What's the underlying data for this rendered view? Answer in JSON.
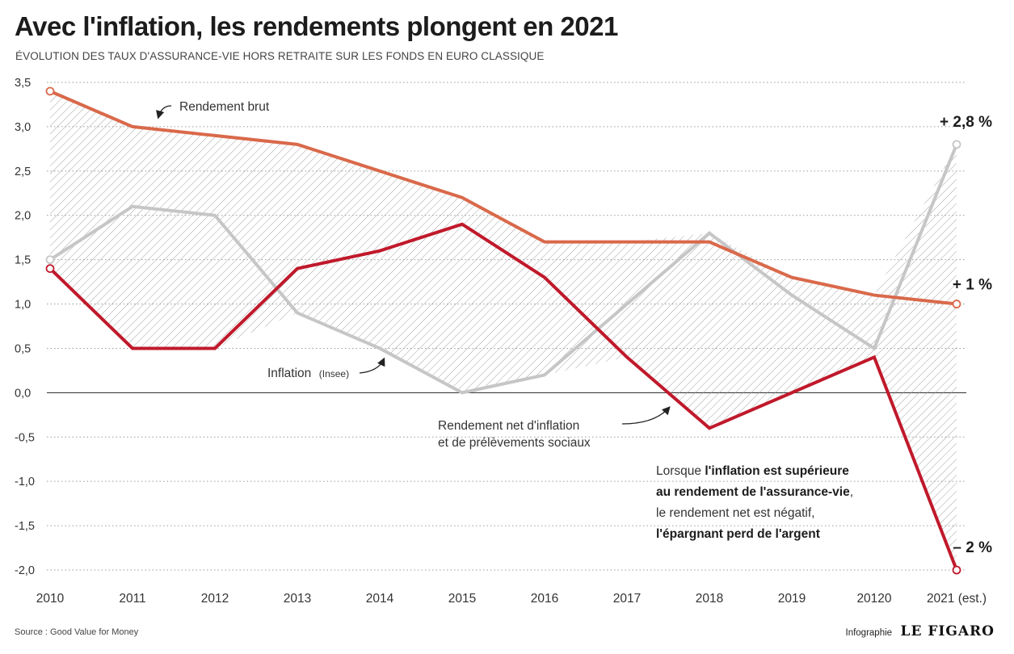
{
  "header": {
    "title": "Avec l'inflation, les rendements plongent en 2021",
    "subtitle": "ÉVOLUTION DES TAUX D'ASSURANCE-VIE HORS RETRAITE SUR LES FONDS EN EURO CLASSIQUE"
  },
  "chart_data": {
    "type": "line",
    "title": "Avec l'inflation, les rendements plongent en 2021",
    "subtitle": "ÉVOLUTION DES TAUX D'ASSURANCE-VIE HORS RETRAITE SUR LES FONDS EN EURO CLASSIQUE",
    "categories": [
      "2010",
      "2011",
      "2012",
      "2013",
      "2014",
      "2015",
      "2016",
      "2017",
      "2018",
      "2019",
      "20120",
      "2021 (est.)"
    ],
    "ylim": [
      -2.0,
      3.5
    ],
    "yticks": [
      3.5,
      3.0,
      2.5,
      2.0,
      1.5,
      1.0,
      0.5,
      0.0,
      -0.5,
      -1.0,
      -1.5,
      -2.0
    ],
    "ytick_labels": [
      "3,5",
      "3,0",
      "2,5",
      "2,0",
      "1,5",
      "1,0",
      "0,5",
      "0,0",
      "-0,5",
      "-1,0",
      "-1,5",
      "-2,0"
    ],
    "grid": "horizontal dotted",
    "series": [
      {
        "name": "Rendement brut",
        "color": "#d9694a",
        "values": [
          3.4,
          3.0,
          2.9,
          2.8,
          2.5,
          2.2,
          1.7,
          1.7,
          1.7,
          1.3,
          1.1,
          1.0
        ]
      },
      {
        "name": "Inflation (Insee)",
        "color": "#c6c6c6",
        "values": [
          1.5,
          2.1,
          2.0,
          0.9,
          0.5,
          0.0,
          0.2,
          1.0,
          1.8,
          1.1,
          0.5,
          2.8
        ]
      },
      {
        "name": "Rendement net d'inflation et de prélèvements sociaux",
        "color": "#c0192b",
        "values": [
          1.4,
          0.5,
          0.5,
          1.4,
          1.6,
          1.9,
          1.3,
          0.4,
          -0.4,
          0.0,
          0.4,
          -2.0
        ]
      }
    ],
    "end_labels": {
      "inflation": "+ 2,8 %",
      "brut": "+ 1 %",
      "net": "– 2 %"
    },
    "annotations": {
      "brut": "Rendement brut",
      "inflation_main": "Inflation",
      "inflation_source": "(Insee)",
      "net_line1": "Rendement net d'inflation",
      "net_line2": "et de prélèvements sociaux",
      "note": {
        "l1_a": "Lorsque ",
        "l1_b": "l'inflation est supérieure",
        "l2_b": "au rendement de l'assurance-vie",
        "l2_a": ",",
        "l3": "le rendement net est négatif,",
        "l4_b": "l'épargnant perd de l'argent"
      }
    },
    "source": "Source : Good Value for Money"
  },
  "footer": {
    "source": "Source : Good Value for Money",
    "credit_prefix": "Infographie",
    "credit_brand": "LE FIGARO"
  }
}
